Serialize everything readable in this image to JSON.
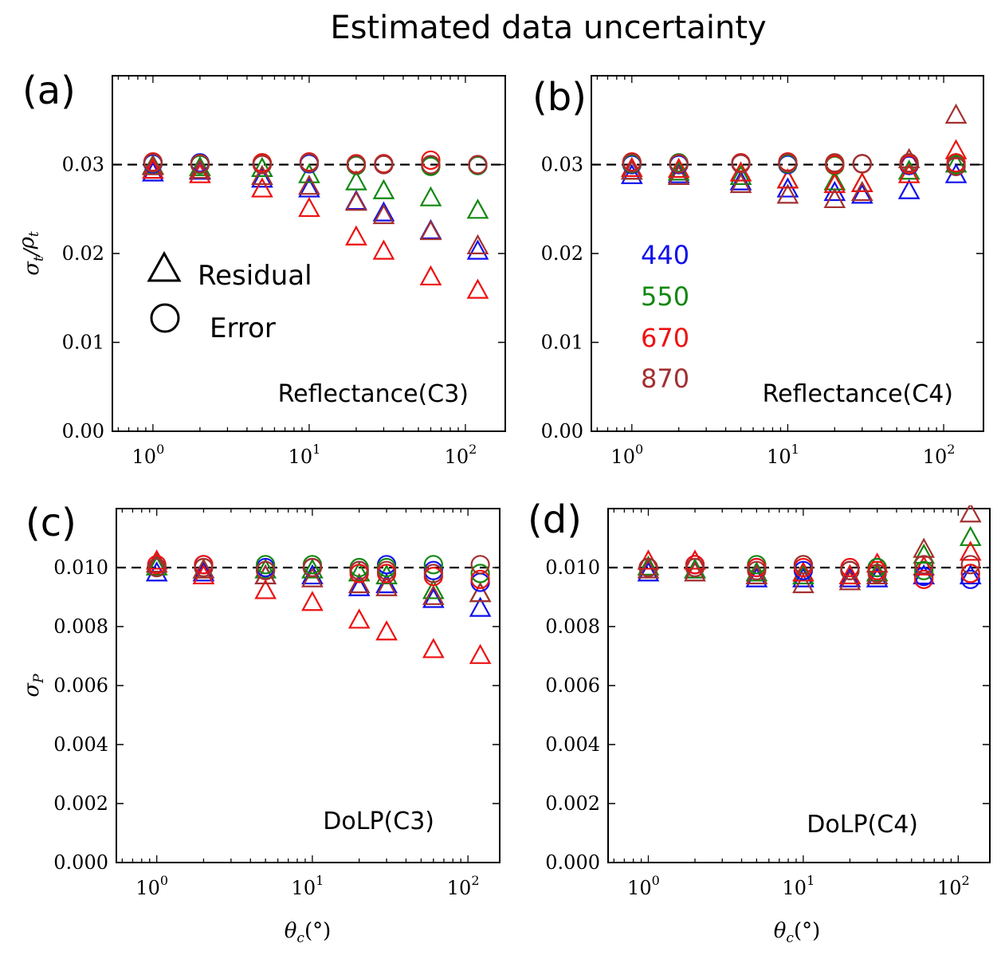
{
  "title": "Estimated data uncertainty",
  "colors": {
    "440": "#1010ee",
    "550": "#118811",
    "670": "#ee1111",
    "870": "#a33030"
  },
  "legend": {
    "markers": [
      {
        "shape": "triangle",
        "label": "Residual"
      },
      {
        "shape": "circle",
        "label": "Error"
      }
    ],
    "wavelengths": [
      "440",
      "550",
      "670",
      "870"
    ]
  },
  "chart_data": [
    {
      "id": "a",
      "label": "(a)",
      "type": "scatter",
      "note": "Reflectance(C3)",
      "xscale": "log",
      "xlim": [
        0.55,
        180
      ],
      "ylim": [
        0.0,
        0.04
      ],
      "ylabel": "σt/ρt",
      "yticks": [
        0.0,
        0.01,
        0.02,
        0.03
      ],
      "yticklabels": [
        "0.00",
        "0.01",
        "0.02",
        "0.03"
      ],
      "xticks": [
        1,
        10,
        100
      ],
      "xticklabels": [
        [
          "10",
          "0"
        ],
        [
          "10",
          "1"
        ],
        [
          "10",
          "2"
        ]
      ],
      "reference": 0.03,
      "x": [
        1,
        2,
        5,
        10,
        20,
        30,
        60,
        120
      ],
      "series": [
        {
          "wl": "440",
          "marker": "triangle",
          "values": [
            0.029,
            0.0292,
            0.0283,
            0.0272,
            0.0258,
            0.0245,
            0.0225,
            0.0202
          ]
        },
        {
          "wl": "550",
          "marker": "triangle",
          "values": [
            0.0298,
            0.0296,
            0.0295,
            0.0288,
            0.028,
            0.027,
            0.0262,
            0.0248
          ]
        },
        {
          "wl": "670",
          "marker": "triangle",
          "values": [
            0.0293,
            0.0288,
            0.0272,
            0.025,
            0.0218,
            0.0202,
            0.0173,
            0.0158
          ]
        },
        {
          "wl": "870",
          "marker": "triangle",
          "values": [
            0.0297,
            0.0293,
            0.0286,
            0.0275,
            0.0257,
            0.0242,
            0.0224,
            0.0208
          ]
        },
        {
          "wl": "440",
          "marker": "circle",
          "values": [
            0.0301,
            0.0302,
            0.0301,
            0.0301,
            0.03,
            0.03,
            0.0299,
            0.0299
          ]
        },
        {
          "wl": "550",
          "marker": "circle",
          "values": [
            0.0302,
            0.03,
            0.0302,
            0.0302,
            0.0299,
            0.0301,
            0.0298,
            0.0299
          ]
        },
        {
          "wl": "670",
          "marker": "circle",
          "values": [
            0.0303,
            0.0301,
            0.0302,
            0.0303,
            0.0301,
            0.0301,
            0.0305,
            0.03
          ]
        },
        {
          "wl": "870",
          "marker": "circle",
          "values": [
            0.0302,
            0.0301,
            0.03,
            0.0302,
            0.03,
            0.03,
            0.03,
            0.03
          ]
        }
      ]
    },
    {
      "id": "b",
      "label": "(b)",
      "type": "scatter",
      "note": "Reflectance(C4)",
      "xscale": "log",
      "xlim": [
        0.55,
        180
      ],
      "ylim": [
        0.0,
        0.04
      ],
      "ylabel": "",
      "yticks": [
        0.0,
        0.01,
        0.02,
        0.03
      ],
      "yticklabels": [
        "0.00",
        "0.01",
        "0.02",
        "0.03"
      ],
      "xticks": [
        1,
        10,
        100
      ],
      "xticklabels": [
        [
          "10",
          "0"
        ],
        [
          "10",
          "1"
        ],
        [
          "10",
          "2"
        ]
      ],
      "reference": 0.03,
      "x": [
        1,
        2,
        5,
        10,
        20,
        30,
        60,
        120
      ],
      "series": [
        {
          "wl": "440",
          "marker": "triangle",
          "values": [
            0.0287,
            0.0288,
            0.028,
            0.0272,
            0.0268,
            0.0265,
            0.027,
            0.0288
          ]
        },
        {
          "wl": "550",
          "marker": "triangle",
          "values": [
            0.0292,
            0.0291,
            0.0286,
            0.0282,
            0.028,
            0.0278,
            0.0292,
            0.03
          ]
        },
        {
          "wl": "670",
          "marker": "triangle",
          "values": [
            0.0295,
            0.0294,
            0.029,
            0.0282,
            0.0277,
            0.0278,
            0.0288,
            0.0315
          ]
        },
        {
          "wl": "870",
          "marker": "triangle",
          "values": [
            0.0292,
            0.0286,
            0.0277,
            0.0265,
            0.026,
            0.0268,
            0.0305,
            0.0355
          ]
        },
        {
          "wl": "440",
          "marker": "circle",
          "values": [
            0.03,
            0.03,
            0.0301,
            0.03,
            0.03,
            0.0301,
            0.0299,
            0.0298
          ]
        },
        {
          "wl": "550",
          "marker": "circle",
          "values": [
            0.0301,
            0.0302,
            0.0302,
            0.0301,
            0.0299,
            0.0301,
            0.03,
            0.03
          ]
        },
        {
          "wl": "670",
          "marker": "circle",
          "values": [
            0.0303,
            0.0301,
            0.0302,
            0.0303,
            0.03,
            0.0301,
            0.03,
            0.0302
          ]
        },
        {
          "wl": "870",
          "marker": "circle",
          "values": [
            0.0302,
            0.0301,
            0.0301,
            0.0302,
            0.0302,
            0.0301,
            0.0302,
            0.0298
          ]
        }
      ]
    },
    {
      "id": "c",
      "label": "(c)",
      "type": "scatter",
      "note": "DoLP(C3)",
      "xscale": "log",
      "xlim": [
        0.55,
        160
      ],
      "ylim": [
        0.0,
        0.012
      ],
      "ylabel": "σP",
      "yticks": [
        0.0,
        0.002,
        0.004,
        0.006,
        0.008,
        0.01
      ],
      "yticklabels": [
        "0.000",
        "0.002",
        "0.004",
        "0.006",
        "0.008",
        "0.010"
      ],
      "xticks": [
        1,
        10,
        100
      ],
      "xticklabels": [
        [
          "10",
          "0"
        ],
        [
          "10",
          "1"
        ],
        [
          "10",
          "2"
        ]
      ],
      "xlabel": "θc(°)",
      "reference": 0.01,
      "x": [
        1,
        2,
        5,
        10,
        20,
        30,
        60,
        120
      ],
      "series": [
        {
          "wl": "440",
          "marker": "triangle",
          "values": [
            0.0098,
            0.0098,
            0.0097,
            0.0097,
            0.0093,
            0.0094,
            0.0089,
            0.0086
          ]
        },
        {
          "wl": "550",
          "marker": "triangle",
          "values": [
            0.01,
            0.0099,
            0.0099,
            0.0099,
            0.0098,
            0.0097,
            0.0092,
            0.0091
          ]
        },
        {
          "wl": "670",
          "marker": "triangle",
          "values": [
            0.0102,
            0.0097,
            0.0092,
            0.0088,
            0.0082,
            0.0078,
            0.0072,
            0.007
          ]
        },
        {
          "wl": "870",
          "marker": "triangle",
          "values": [
            0.0101,
            0.0099,
            0.0097,
            0.0096,
            0.0094,
            0.0093,
            0.009,
            0.0091
          ]
        },
        {
          "wl": "440",
          "marker": "circle",
          "values": [
            0.01,
            0.0101,
            0.01,
            0.01,
            0.0099,
            0.0101,
            0.0099,
            0.0095
          ]
        },
        {
          "wl": "550",
          "marker": "circle",
          "values": [
            0.01,
            0.01,
            0.0101,
            0.0101,
            0.01,
            0.01,
            0.0101,
            0.0098
          ]
        },
        {
          "wl": "670",
          "marker": "circle",
          "values": [
            0.0101,
            0.0101,
            0.0099,
            0.01,
            0.0098,
            0.0098,
            0.0097,
            0.0096
          ]
        },
        {
          "wl": "870",
          "marker": "circle",
          "values": [
            0.01,
            0.01,
            0.0099,
            0.01,
            0.0099,
            0.0099,
            0.0098,
            0.0101
          ]
        }
      ]
    },
    {
      "id": "d",
      "label": "(d)",
      "type": "scatter",
      "note": "DoLP(C4)",
      "xscale": "log",
      "xlim": [
        0.55,
        160
      ],
      "ylim": [
        0.0,
        0.012
      ],
      "ylabel": "",
      "yticks": [
        0.0,
        0.002,
        0.004,
        0.006,
        0.008,
        0.01
      ],
      "yticklabels": [
        "0.000",
        "0.002",
        "0.004",
        "0.006",
        "0.008",
        "0.010"
      ],
      "xticks": [
        1,
        10,
        100
      ],
      "xticklabels": [
        [
          "10",
          "0"
        ],
        [
          "10",
          "1"
        ],
        [
          "10",
          "2"
        ]
      ],
      "xlabel": "θc(°)",
      "reference": 0.01,
      "x": [
        1,
        2,
        5,
        10,
        20,
        30,
        60,
        120
      ],
      "series": [
        {
          "wl": "440",
          "marker": "triangle",
          "values": [
            0.0098,
            0.0099,
            0.0096,
            0.0096,
            0.0096,
            0.0096,
            0.0097,
            0.0097
          ]
        },
        {
          "wl": "550",
          "marker": "triangle",
          "values": [
            0.01,
            0.0099,
            0.0098,
            0.0097,
            0.0097,
            0.0098,
            0.0104,
            0.011
          ]
        },
        {
          "wl": "670",
          "marker": "triangle",
          "values": [
            0.0102,
            0.0102,
            0.0097,
            0.0098,
            0.0097,
            0.0101,
            0.01,
            0.0105
          ]
        },
        {
          "wl": "870",
          "marker": "triangle",
          "values": [
            0.0099,
            0.0098,
            0.0097,
            0.0094,
            0.0095,
            0.0097,
            0.0106,
            0.0118
          ]
        },
        {
          "wl": "440",
          "marker": "circle",
          "values": [
            0.01,
            0.0101,
            0.01,
            0.0099,
            0.0099,
            0.01,
            0.0097,
            0.0096
          ]
        },
        {
          "wl": "550",
          "marker": "circle",
          "values": [
            0.01,
            0.01,
            0.0101,
            0.0101,
            0.0099,
            0.01,
            0.0099,
            0.0098
          ]
        },
        {
          "wl": "670",
          "marker": "circle",
          "values": [
            0.01,
            0.0101,
            0.01,
            0.01,
            0.01,
            0.0099,
            0.0096,
            0.0098
          ]
        },
        {
          "wl": "870",
          "marker": "circle",
          "values": [
            0.01,
            0.01,
            0.0099,
            0.0101,
            0.0099,
            0.0098,
            0.0101,
            0.0101
          ]
        }
      ]
    }
  ]
}
